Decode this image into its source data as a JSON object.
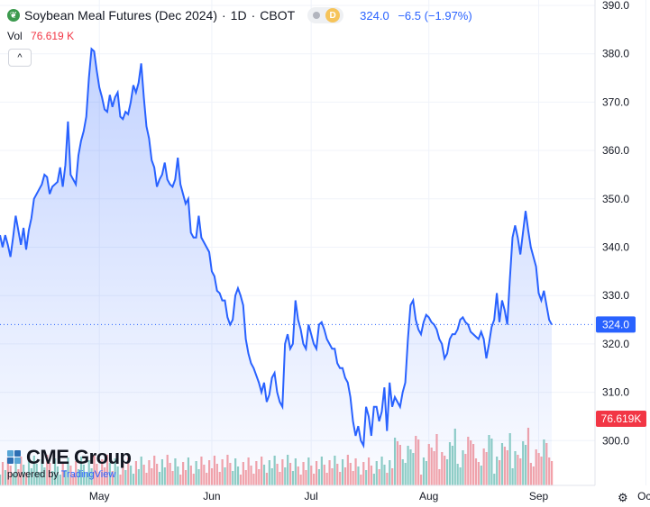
{
  "header": {
    "symbol_title": "Soybean Meal Futures (Dec 2024)",
    "interval": "1D",
    "exchange": "CBOT",
    "badge": "D",
    "last_price": "324.0",
    "change": "−6.5 (−1.97%)"
  },
  "volume": {
    "label": "Vol",
    "value": "76.619 K"
  },
  "branding": {
    "brand": "CME Group",
    "powered_by": "powered by",
    "powered_brand": "TradingView"
  },
  "colors": {
    "line": "#2962ff",
    "area_fill": "#2962ff",
    "volume_up": "#8fcfc4",
    "volume_down": "#f5a3a8",
    "price_label": "#2962ff",
    "volume_label": "#f23645"
  },
  "chart_data": {
    "type": "area",
    "title": "Soybean Meal Futures (Dec 2024)",
    "y_axis_position": "right",
    "ylim": [
      295,
      390
    ],
    "yticks": [
      "390.0",
      "380.0",
      "370.0",
      "360.0",
      "350.0",
      "340.0",
      "330.0",
      "320.0",
      "310.0",
      "300.0"
    ],
    "xticks": [
      "May",
      "Jun",
      "Jul",
      "Aug",
      "Sep",
      "Oct"
    ],
    "last_price_label": "324.0",
    "last_volume_label": "76.619K",
    "grid": true,
    "series": [
      {
        "values": [
          342.5,
          340,
          342.5,
          340.5,
          338,
          342,
          346.5,
          343.5,
          340.5,
          344,
          339.5,
          343.5,
          346,
          350,
          351,
          352,
          353,
          355,
          354.5,
          351,
          352.5,
          353,
          353.5,
          356.5,
          352.5,
          357,
          366,
          355,
          354,
          353,
          359,
          362,
          364,
          367,
          375,
          381,
          380.5,
          376.5,
          373,
          371,
          368.5,
          368,
          371.5,
          369,
          371,
          372,
          367,
          366.5,
          368,
          367.5,
          370,
          373.5,
          372,
          374,
          378,
          371,
          365,
          362.5,
          358,
          356.5,
          352.5,
          354,
          355,
          357.5,
          354,
          353,
          352.5,
          354,
          358.5,
          353,
          351,
          349,
          350,
          343,
          342,
          342,
          346.5,
          342,
          341,
          340,
          339,
          335,
          334,
          331,
          330.5,
          329,
          329,
          325.5,
          324,
          325,
          330,
          331.5,
          330,
          328,
          321,
          318,
          316,
          315,
          313.5,
          312,
          310,
          312,
          308,
          309.5,
          313,
          314,
          310,
          308,
          307,
          320,
          322,
          319,
          320,
          329,
          325,
          323,
          320,
          319,
          324,
          322,
          320,
          319,
          324,
          324.5,
          323,
          321,
          320,
          319,
          319,
          316,
          315,
          315,
          313,
          312,
          309,
          304,
          301,
          303,
          300,
          299,
          307,
          305,
          301,
          307,
          307,
          304,
          306,
          311,
          302,
          312,
          307,
          309,
          308,
          307,
          310,
          312,
          321,
          328,
          329,
          325,
          323,
          322,
          324.5,
          326,
          325.5,
          324.5,
          324,
          323,
          321,
          320,
          317,
          318,
          321,
          322,
          322,
          323,
          325,
          325.5,
          324.5,
          324,
          322.5,
          322,
          321.5,
          321,
          322.5,
          321,
          317,
          320,
          323.5,
          325,
          330.5,
          324.5,
          329,
          327,
          324,
          333.5,
          342,
          344.5,
          342,
          338.5,
          343,
          347.5,
          343.5,
          340,
          338,
          336,
          330.5,
          329,
          331,
          328,
          325,
          324
        ]
      }
    ]
  }
}
